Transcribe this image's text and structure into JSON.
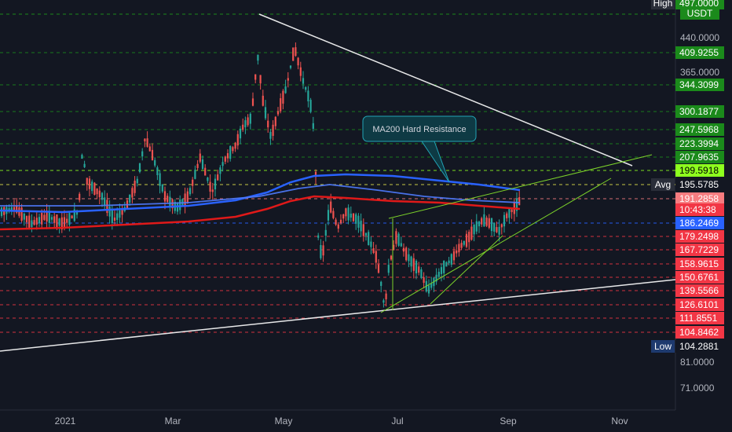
{
  "chart_data": {
    "type": "candlestick",
    "symbol_unit": "USDT",
    "x_axis_labels": [
      "2021",
      "Mar",
      "May",
      "Jul",
      "Sep",
      "Nov"
    ],
    "y_axis_labels": [
      "440.0000",
      "365.0000",
      "81.0000",
      "71.0000"
    ],
    "price_levels": [
      {
        "label": "High",
        "value": "497.0000",
        "kind": "green"
      },
      {
        "value": "409.9255",
        "kind": "green"
      },
      {
        "value": "344.3099",
        "kind": "green"
      },
      {
        "value": "300.1877",
        "kind": "green"
      },
      {
        "value": "247.5968",
        "kind": "green"
      },
      {
        "value": "223.3994",
        "kind": "green"
      },
      {
        "value": "207.9635",
        "kind": "green"
      },
      {
        "value": "199.5918",
        "kind": "lime"
      },
      {
        "label": "Avg",
        "value": "195.5785",
        "kind": "avg"
      },
      {
        "value": "191.2858",
        "kind": "last_top"
      },
      {
        "value": "10:43:38",
        "kind": "last_bottom"
      },
      {
        "value": "186.2469",
        "kind": "blue"
      },
      {
        "value": "179.2498",
        "kind": "red"
      },
      {
        "value": "167.7229",
        "kind": "red"
      },
      {
        "value": "158.9615",
        "kind": "red"
      },
      {
        "value": "150.6761",
        "kind": "red"
      },
      {
        "value": "139.5566",
        "kind": "red"
      },
      {
        "value": "126.6101",
        "kind": "red"
      },
      {
        "value": "111.8551",
        "kind": "red"
      },
      {
        "value": "104.8462",
        "kind": "red"
      },
      {
        "label": "Low",
        "value": "104.2881",
        "kind": "low"
      }
    ],
    "annotation": "MA200 Hard Resistance",
    "series_lines": [
      {
        "name": "Moving average (blue)",
        "color": "#2962ff"
      },
      {
        "name": "Moving average (red)",
        "color": "#e01919"
      }
    ],
    "grid": false,
    "log_scale": true
  },
  "colors": {
    "background": "#131722",
    "green": "#26a69a",
    "red": "#ef5350",
    "level_green": "#1b8a1b",
    "level_red": "#f23645",
    "lime": "#8eff1e",
    "blue": "#2962ff",
    "trendline": "#ffffff",
    "channel": "#7cd22a",
    "annotation_border": "#22a4b6",
    "annotation_fill": "#0e3a44"
  }
}
